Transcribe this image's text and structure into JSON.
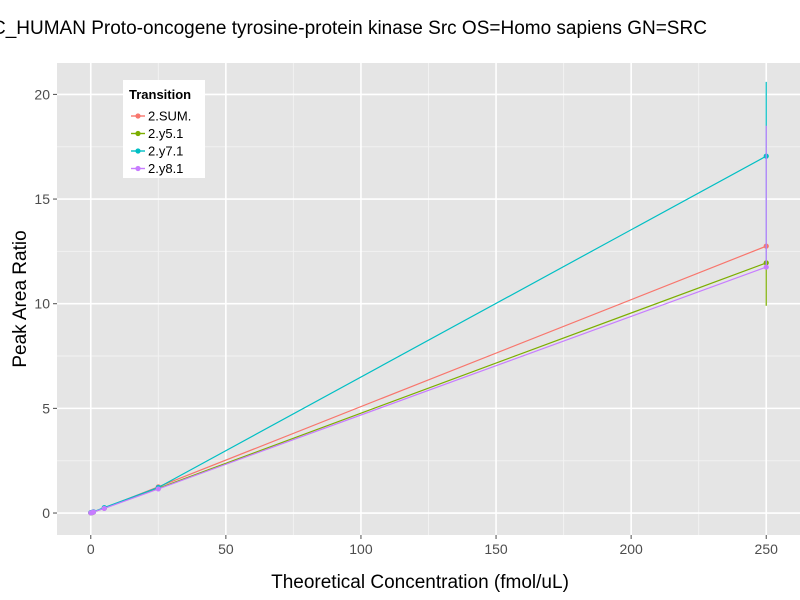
{
  "chart_data": {
    "type": "line",
    "title": "C_HUMAN Proto-oncogene tyrosine-protein kinase Src OS=Homo sapiens GN=SRC",
    "xlabel": "Theoretical Concentration (fmol/uL)",
    "ylabel": "Peak Area Ratio",
    "xlim": [
      -12.5,
      262.5
    ],
    "ylim": [
      -1.05,
      21.5
    ],
    "x_ticks": [
      0,
      50,
      100,
      150,
      200,
      250
    ],
    "y_ticks": [
      0,
      5,
      10,
      15,
      20
    ],
    "grid": true,
    "legend": {
      "title": "Transition",
      "placement": "top-left"
    },
    "series": [
      {
        "name": "2.SUM.",
        "color": "#F8766D",
        "x": [
          0,
          0.5,
          1,
          5,
          25,
          250
        ],
        "y": [
          0.01,
          0.03,
          0.05,
          0.24,
          1.25,
          12.75
        ],
        "error_bars": []
      },
      {
        "name": "2.y5.1",
        "color": "#7CAE00",
        "x": [
          0,
          0.5,
          1,
          5,
          25,
          250
        ],
        "y": [
          0.01,
          0.02,
          0.05,
          0.23,
          1.18,
          11.95
        ],
        "error_bars": [
          {
            "x": 250,
            "low": 9.9,
            "high": 12.0
          }
        ]
      },
      {
        "name": "2.y7.1",
        "color": "#00BFC4",
        "x": [
          0,
          0.5,
          1,
          5,
          25,
          250
        ],
        "y": [
          0.02,
          0.03,
          0.06,
          0.26,
          1.22,
          17.05
        ],
        "error_bars": [
          {
            "x": 250,
            "low": 11.9,
            "high": 20.6
          }
        ]
      },
      {
        "name": "2.y8.1",
        "color": "#C77CFF",
        "x": [
          0,
          0.5,
          1,
          5,
          25,
          250
        ],
        "y": [
          0.01,
          0.02,
          0.05,
          0.22,
          1.15,
          11.75
        ],
        "error_bars": [
          {
            "x": 250,
            "low": 11.8,
            "high": 18.5
          }
        ]
      }
    ]
  }
}
